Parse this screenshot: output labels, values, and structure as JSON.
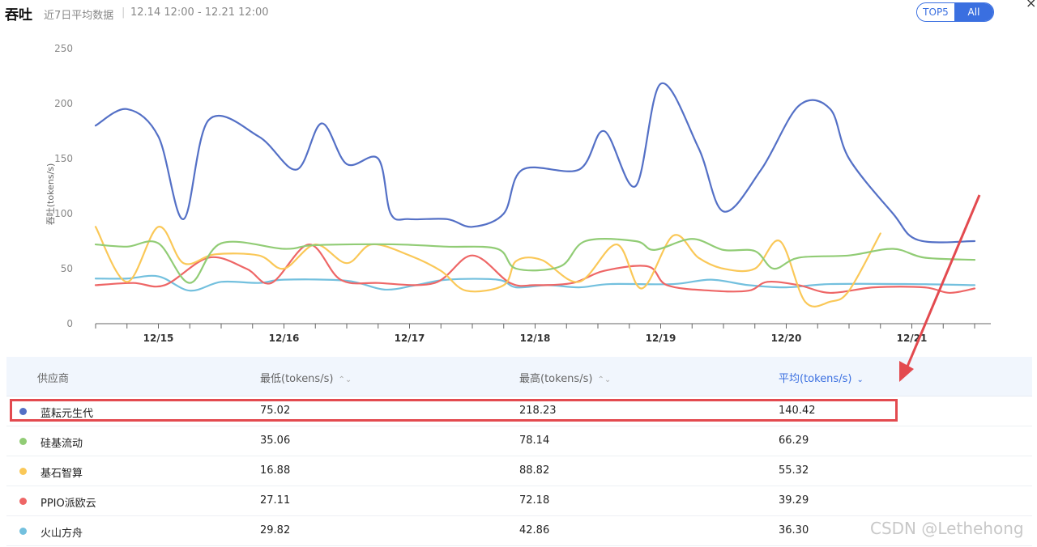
{
  "header": {
    "title": "吞吐",
    "subtitle": "近7日平均数据",
    "separator": "|",
    "date_range": "12.14 12:00 - 12.21 12:00",
    "toggle": {
      "top5": "TOP5",
      "all": "All"
    },
    "close_glyph": "×"
  },
  "chart_data": {
    "type": "line",
    "ylabel": "吞吐(tokens/s)",
    "ylim": [
      0,
      250
    ],
    "yticks": [
      0,
      50,
      100,
      150,
      200,
      250
    ],
    "xlim": [
      0,
      7
    ],
    "xtick_labels": [
      {
        "x": 0.5,
        "label": "12/15"
      },
      {
        "x": 1.5,
        "label": "12/16"
      },
      {
        "x": 2.5,
        "label": "12/17"
      },
      {
        "x": 3.5,
        "label": "12/18"
      },
      {
        "x": 4.5,
        "label": "12/19"
      },
      {
        "x": 5.5,
        "label": "12/20"
      },
      {
        "x": 6.5,
        "label": "12/21"
      }
    ],
    "series": [
      {
        "name": "蓝耘元生代",
        "color": "#5470c6",
        "points": [
          [
            0,
            180
          ],
          [
            0.25,
            195
          ],
          [
            0.5,
            170
          ],
          [
            0.7,
            95
          ],
          [
            0.9,
            185
          ],
          [
            1.3,
            170
          ],
          [
            1.6,
            140
          ],
          [
            1.8,
            182
          ],
          [
            2.0,
            145
          ],
          [
            2.25,
            150
          ],
          [
            2.35,
            100
          ],
          [
            2.5,
            95
          ],
          [
            2.8,
            95
          ],
          [
            3.0,
            88
          ],
          [
            3.25,
            100
          ],
          [
            3.4,
            140
          ],
          [
            3.85,
            140
          ],
          [
            4.05,
            175
          ],
          [
            4.3,
            125
          ],
          [
            4.5,
            218
          ],
          [
            4.8,
            160
          ],
          [
            5.0,
            102
          ],
          [
            5.3,
            140
          ],
          [
            5.6,
            198
          ],
          [
            5.85,
            195
          ],
          [
            6.0,
            150
          ],
          [
            6.35,
            100
          ],
          [
            6.55,
            76
          ],
          [
            7.0,
            75
          ]
        ]
      },
      {
        "name": "硅基流动",
        "color": "#91cc75",
        "points": [
          [
            0,
            72
          ],
          [
            0.25,
            70
          ],
          [
            0.5,
            73
          ],
          [
            0.75,
            37
          ],
          [
            1.0,
            73
          ],
          [
            1.5,
            68
          ],
          [
            1.7,
            71
          ],
          [
            2.0,
            72
          ],
          [
            2.4,
            72
          ],
          [
            2.8,
            70
          ],
          [
            3.2,
            68
          ],
          [
            3.35,
            50
          ],
          [
            3.7,
            52
          ],
          [
            3.9,
            75
          ],
          [
            4.3,
            75
          ],
          [
            4.45,
            67
          ],
          [
            4.75,
            77
          ],
          [
            5.0,
            67
          ],
          [
            5.25,
            66
          ],
          [
            5.4,
            50
          ],
          [
            5.6,
            60
          ],
          [
            6.0,
            62
          ],
          [
            6.35,
            68
          ],
          [
            6.6,
            60
          ],
          [
            7.0,
            58
          ]
        ]
      },
      {
        "name": "基石智算",
        "color": "#fac858",
        "points": [
          [
            0,
            88
          ],
          [
            0.25,
            38
          ],
          [
            0.5,
            88
          ],
          [
            0.7,
            55
          ],
          [
            0.95,
            63
          ],
          [
            1.3,
            62
          ],
          [
            1.5,
            50
          ],
          [
            1.75,
            72
          ],
          [
            2.0,
            55
          ],
          [
            2.2,
            72
          ],
          [
            2.5,
            62
          ],
          [
            2.75,
            48
          ],
          [
            2.95,
            30
          ],
          [
            3.25,
            35
          ],
          [
            3.35,
            57
          ],
          [
            3.55,
            58
          ],
          [
            3.85,
            38
          ],
          [
            4.15,
            72
          ],
          [
            4.35,
            32
          ],
          [
            4.6,
            80
          ],
          [
            4.8,
            60
          ],
          [
            5.0,
            50
          ],
          [
            5.25,
            50
          ],
          [
            5.45,
            75
          ],
          [
            5.65,
            20
          ],
          [
            5.85,
            20
          ],
          [
            6.0,
            30
          ],
          [
            6.25,
            82
          ]
        ]
      },
      {
        "name": "PPIO派欧云",
        "color": "#ee6666",
        "points": [
          [
            0,
            35
          ],
          [
            0.3,
            37
          ],
          [
            0.55,
            35
          ],
          [
            0.9,
            60
          ],
          [
            1.2,
            50
          ],
          [
            1.4,
            37
          ],
          [
            1.7,
            72
          ],
          [
            1.95,
            40
          ],
          [
            2.25,
            37
          ],
          [
            2.7,
            37
          ],
          [
            3.0,
            62
          ],
          [
            3.3,
            37
          ],
          [
            3.5,
            35
          ],
          [
            3.8,
            37
          ],
          [
            4.05,
            48
          ],
          [
            4.4,
            52
          ],
          [
            4.55,
            35
          ],
          [
            4.9,
            30
          ],
          [
            5.2,
            30
          ],
          [
            5.35,
            38
          ],
          [
            5.6,
            35
          ],
          [
            5.85,
            28
          ],
          [
            6.2,
            33
          ],
          [
            6.6,
            33
          ],
          [
            6.8,
            28
          ],
          [
            7.0,
            32
          ]
        ]
      },
      {
        "name": "火山方舟",
        "color": "#73c0de",
        "points": [
          [
            0,
            41
          ],
          [
            0.25,
            41
          ],
          [
            0.5,
            43
          ],
          [
            0.75,
            30
          ],
          [
            1.0,
            38
          ],
          [
            1.3,
            37
          ],
          [
            1.5,
            40
          ],
          [
            2.0,
            39
          ],
          [
            2.3,
            31
          ],
          [
            2.55,
            35
          ],
          [
            2.8,
            40
          ],
          [
            3.2,
            40
          ],
          [
            3.35,
            33
          ],
          [
            3.6,
            35
          ],
          [
            3.85,
            33
          ],
          [
            4.1,
            36
          ],
          [
            4.6,
            36
          ],
          [
            4.9,
            40
          ],
          [
            5.2,
            35
          ],
          [
            5.5,
            33
          ],
          [
            5.85,
            36
          ],
          [
            6.5,
            36
          ],
          [
            7.0,
            35
          ]
        ]
      }
    ]
  },
  "table": {
    "headers": {
      "provider": "供应商",
      "min": "最低(tokens/s)",
      "max": "最高(tokens/s)",
      "avg": "平均(tokens/s)"
    },
    "sort_glyph": "⌃⌄",
    "active_sort_glyph": "⌄",
    "rows": [
      {
        "name": "蓝耘元生代",
        "color": "#5470c6",
        "min": "75.02",
        "max": "218.23",
        "avg": "140.42"
      },
      {
        "name": "硅基流动",
        "color": "#91cc75",
        "min": "35.06",
        "max": "78.14",
        "avg": "66.29"
      },
      {
        "name": "基石智算",
        "color": "#fac858",
        "min": "16.88",
        "max": "88.82",
        "avg": "55.32"
      },
      {
        "name": "PPIO派欧云",
        "color": "#ee6666",
        "min": "27.11",
        "max": "72.18",
        "avg": "39.29"
      },
      {
        "name": "火山方舟",
        "color": "#73c0de",
        "min": "29.82",
        "max": "42.86",
        "avg": "36.30"
      }
    ]
  },
  "annotation": {
    "color": "#e34a4f"
  },
  "watermark": "CSDN @Lethehong"
}
